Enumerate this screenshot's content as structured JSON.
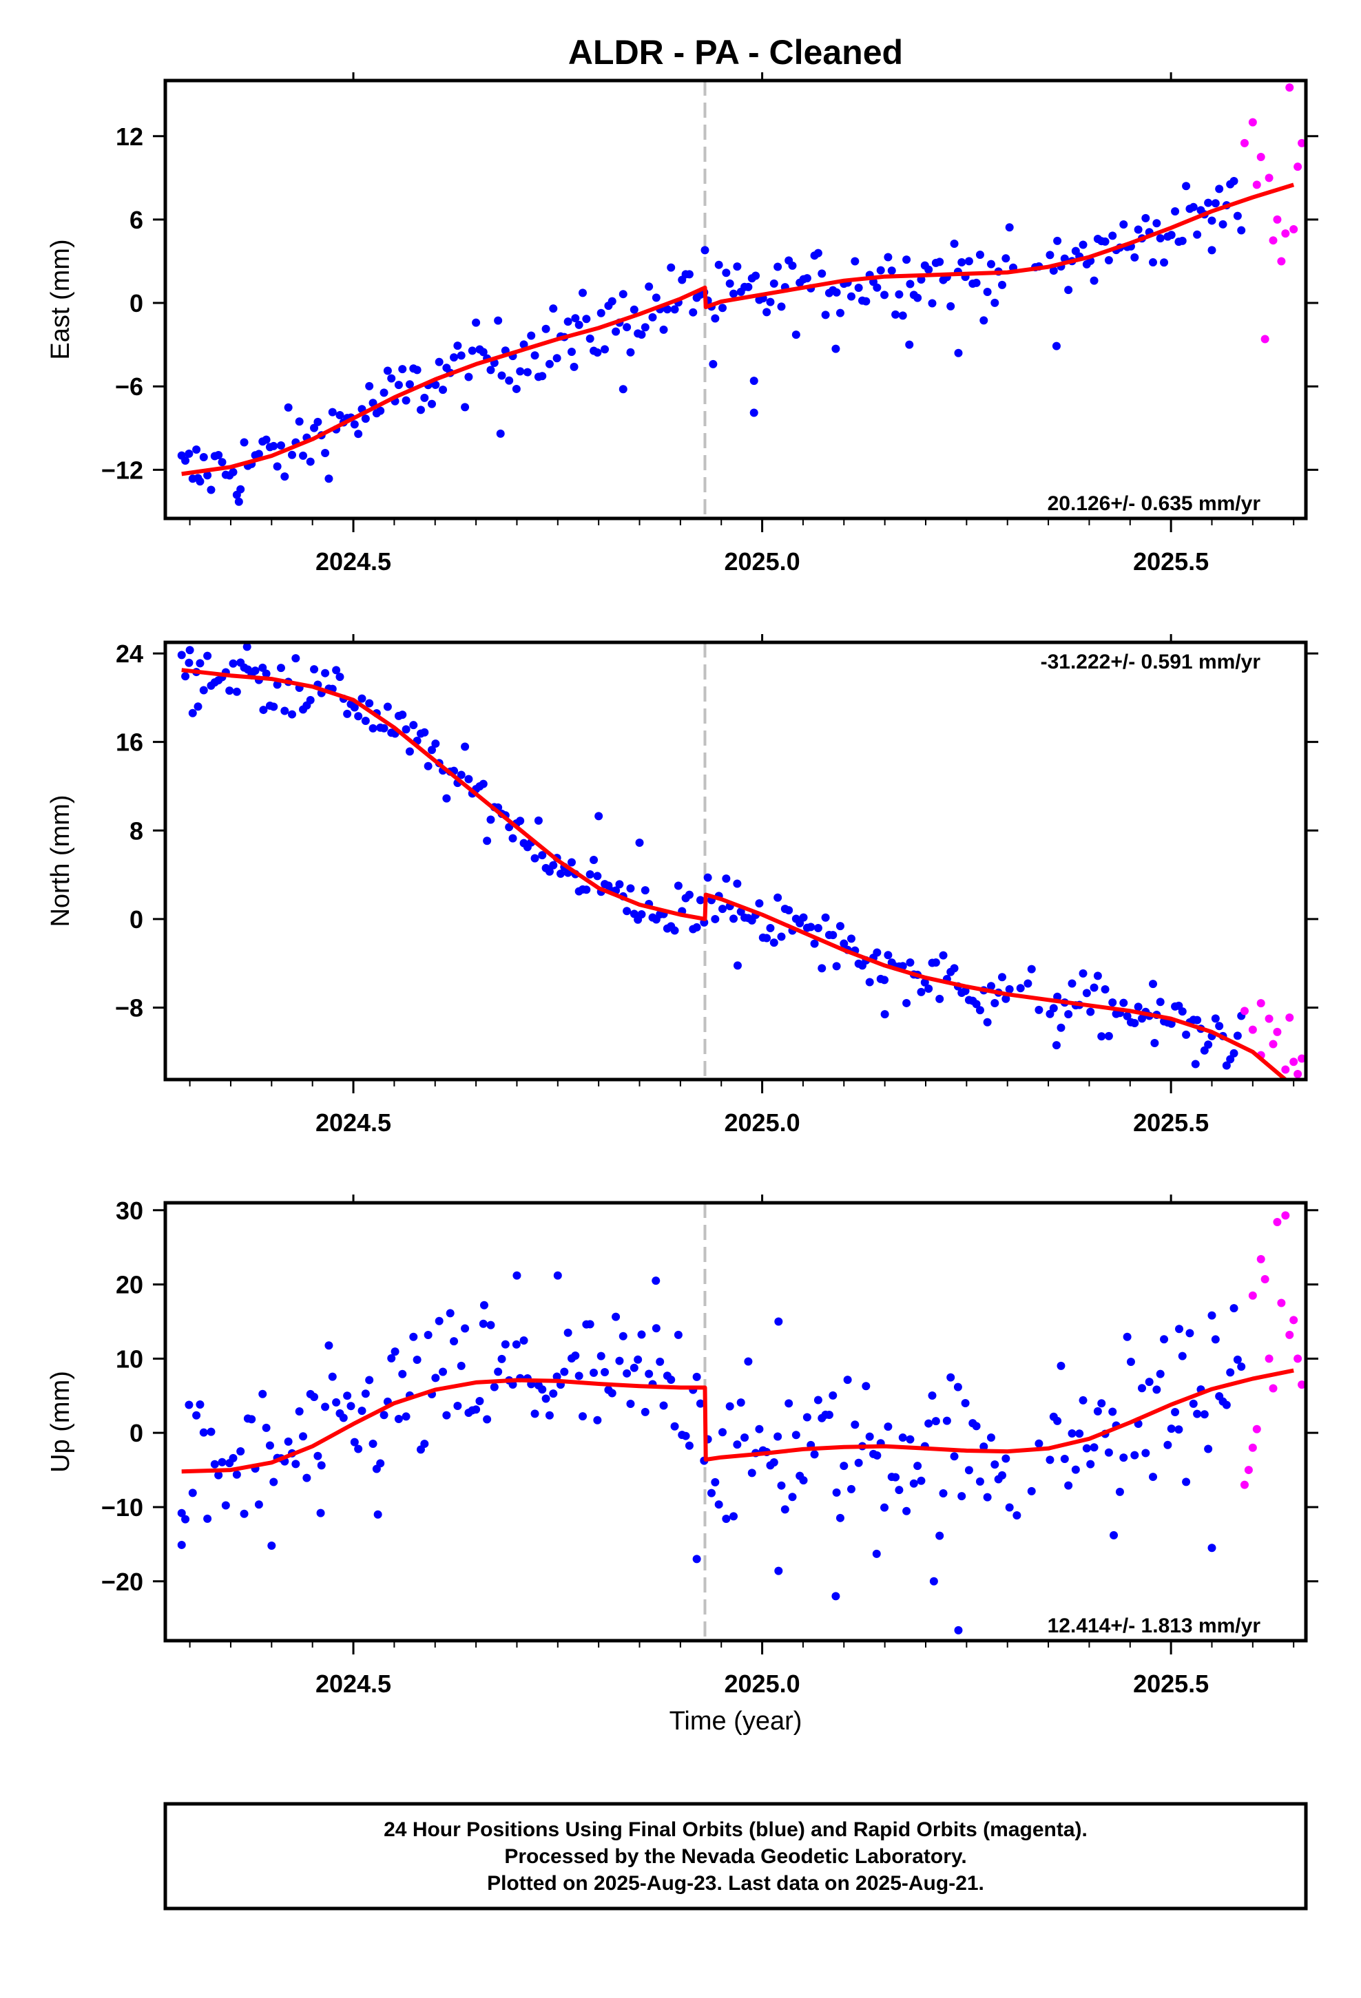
{
  "title": "ALDR  - PA - Cleaned",
  "xlabel": "Time (year)",
  "x_ticks": [
    "2024.5",
    "2025.0",
    "2025.5"
  ],
  "colors": {
    "final": "#0000ff",
    "rapid": "#ff00ff",
    "model": "#ff0000",
    "event": "#c0c0c0"
  },
  "footer": {
    "line1": "24 Hour Positions Using Final Orbits (blue) and Rapid Orbits (magenta).",
    "line2": "Processed by the Nevada Geodetic Laboratory.",
    "line3": "Plotted on 2025-Aug-23. Last data on 2025-Aug-21."
  },
  "chart_data": [
    {
      "type": "scatter",
      "name_shown": "East (mm)",
      "ylabel": "East (mm)",
      "rate_text": "20.126+/- 0.635 mm/yr",
      "xlim": [
        2024.27,
        2025.665
      ],
      "ylim": [
        -15.5,
        16
      ],
      "x_ticks": [
        2024.5,
        2025.0,
        2025.5
      ],
      "y_ticks": [
        12,
        6,
        0,
        -6,
        -12
      ],
      "event_x": 2024.93,
      "rapid_start": 2025.59,
      "model": [
        [
          2024.29,
          -12.3
        ],
        [
          2024.35,
          -11.8
        ],
        [
          2024.4,
          -11.0
        ],
        [
          2024.45,
          -9.8
        ],
        [
          2024.5,
          -8.3
        ],
        [
          2024.55,
          -6.8
        ],
        [
          2024.6,
          -5.5
        ],
        [
          2024.65,
          -4.4
        ],
        [
          2024.7,
          -3.5
        ],
        [
          2024.75,
          -2.6
        ],
        [
          2024.8,
          -1.8
        ],
        [
          2024.85,
          -0.8
        ],
        [
          2024.9,
          0.3
        ],
        [
          2024.93,
          1.1
        ],
        [
          2024.931,
          -0.3
        ],
        [
          2024.95,
          0.1
        ],
        [
          2025.0,
          0.6
        ],
        [
          2025.05,
          1.1
        ],
        [
          2025.1,
          1.6
        ],
        [
          2025.15,
          1.9
        ],
        [
          2025.2,
          2.0
        ],
        [
          2025.25,
          2.1
        ],
        [
          2025.3,
          2.2
        ],
        [
          2025.35,
          2.6
        ],
        [
          2025.4,
          3.3
        ],
        [
          2025.45,
          4.3
        ],
        [
          2025.5,
          5.4
        ],
        [
          2025.55,
          6.6
        ],
        [
          2025.6,
          7.6
        ],
        [
          2025.65,
          8.5
        ]
      ],
      "y_spread": 1.3,
      "outliers": [
        [
          2024.83,
          -6.2
        ],
        [
          2024.77,
          -4.6
        ],
        [
          2024.68,
          -9.4
        ],
        [
          2024.31,
          -12.6
        ],
        [
          2024.36,
          -14.3
        ],
        [
          2024.94,
          -4.4
        ],
        [
          2024.99,
          -5.6
        ],
        [
          2024.99,
          -7.9
        ],
        [
          2025.09,
          -3.3
        ],
        [
          2025.18,
          -3.0
        ],
        [
          2025.24,
          -3.6
        ],
        [
          2025.36,
          -3.1
        ],
        [
          2025.55,
          3.8
        ],
        [
          2024.93,
          3.8
        ]
      ],
      "rapid": [
        [
          2025.59,
          11.5
        ],
        [
          2025.6,
          13.0
        ],
        [
          2025.61,
          10.5
        ],
        [
          2025.62,
          9.0
        ],
        [
          2025.63,
          6.0
        ],
        [
          2025.64,
          5.0
        ],
        [
          2025.615,
          -2.6
        ],
        [
          2025.625,
          4.5
        ],
        [
          2025.635,
          3.0
        ],
        [
          2025.645,
          15.5
        ],
        [
          2025.655,
          9.8
        ],
        [
          2025.66,
          11.5
        ],
        [
          2025.65,
          5.3
        ],
        [
          2025.605,
          8.5
        ]
      ]
    },
    {
      "type": "scatter",
      "ylabel": "North (mm)",
      "rate_text": "-31.222+/- 0.591 mm/yr",
      "xlim": [
        2024.27,
        2025.665
      ],
      "ylim": [
        -14.5,
        25
      ],
      "x_ticks": [
        2024.5,
        2025.0,
        2025.5
      ],
      "y_ticks": [
        24,
        16,
        8,
        0,
        -8
      ],
      "event_x": 2024.93,
      "rapid_start": 2025.59,
      "model": [
        [
          2024.29,
          22.5
        ],
        [
          2024.35,
          22.0
        ],
        [
          2024.4,
          21.7
        ],
        [
          2024.45,
          21.0
        ],
        [
          2024.5,
          19.8
        ],
        [
          2024.55,
          17.3
        ],
        [
          2024.6,
          14.3
        ],
        [
          2024.65,
          11.3
        ],
        [
          2024.7,
          8.3
        ],
        [
          2024.75,
          5.3
        ],
        [
          2024.8,
          2.8
        ],
        [
          2024.85,
          1.3
        ],
        [
          2024.9,
          0.4
        ],
        [
          2024.93,
          0.0
        ],
        [
          2024.931,
          2.2
        ],
        [
          2024.95,
          1.8
        ],
        [
          2025.0,
          0.4
        ],
        [
          2025.05,
          -1.2
        ],
        [
          2025.1,
          -2.8
        ],
        [
          2025.15,
          -4.2
        ],
        [
          2025.2,
          -5.3
        ],
        [
          2025.25,
          -6.1
        ],
        [
          2025.3,
          -6.8
        ],
        [
          2025.35,
          -7.3
        ],
        [
          2025.4,
          -7.8
        ],
        [
          2025.45,
          -8.3
        ],
        [
          2025.5,
          -9.0
        ],
        [
          2025.55,
          -10.2
        ],
        [
          2025.6,
          -12.0
        ],
        [
          2025.64,
          -14.5
        ]
      ],
      "y_spread": 1.3,
      "outliers": [
        [
          2024.31,
          19.2
        ],
        [
          2024.39,
          18.9
        ],
        [
          2024.3,
          24.3
        ],
        [
          2024.37,
          24.6
        ],
        [
          2024.8,
          9.3
        ],
        [
          2024.85,
          6.9
        ],
        [
          2024.97,
          -4.2
        ],
        [
          2025.15,
          -8.6
        ],
        [
          2025.36,
          -11.4
        ],
        [
          2025.48,
          -11.2
        ],
        [
          2025.53,
          -13.1
        ]
      ],
      "rapid": [
        [
          2025.59,
          -8.3
        ],
        [
          2025.6,
          -10.0
        ],
        [
          2025.61,
          -7.6
        ],
        [
          2025.62,
          -9.0
        ],
        [
          2025.625,
          -11.3
        ],
        [
          2025.63,
          -10.2
        ],
        [
          2025.64,
          -13.6
        ],
        [
          2025.645,
          -8.9
        ],
        [
          2025.65,
          -12.9
        ],
        [
          2025.655,
          -14.0
        ],
        [
          2025.66,
          -12.6
        ],
        [
          2025.61,
          -12.3
        ]
      ]
    },
    {
      "type": "scatter",
      "ylabel": "Up (mm)",
      "rate_text": "12.414+/- 1.813 mm/yr",
      "xlim": [
        2024.27,
        2025.665
      ],
      "ylim": [
        -28,
        31
      ],
      "x_ticks": [
        2024.5,
        2025.0,
        2025.5
      ],
      "y_ticks": [
        30,
        20,
        10,
        0,
        -10,
        -20
      ],
      "event_x": 2024.93,
      "rapid_start": 2025.59,
      "model": [
        [
          2024.29,
          -5.2
        ],
        [
          2024.35,
          -5.0
        ],
        [
          2024.4,
          -4.0
        ],
        [
          2024.45,
          -1.8
        ],
        [
          2024.5,
          1.2
        ],
        [
          2024.55,
          4.0
        ],
        [
          2024.6,
          5.8
        ],
        [
          2024.65,
          6.8
        ],
        [
          2024.7,
          7.1
        ],
        [
          2024.75,
          7.0
        ],
        [
          2024.8,
          6.6
        ],
        [
          2024.85,
          6.3
        ],
        [
          2024.9,
          6.1
        ],
        [
          2024.93,
          6.1
        ],
        [
          2024.931,
          -3.6
        ],
        [
          2024.95,
          -3.3
        ],
        [
          2025.0,
          -2.8
        ],
        [
          2025.05,
          -2.2
        ],
        [
          2025.1,
          -1.9
        ],
        [
          2025.15,
          -1.8
        ],
        [
          2025.2,
          -2.1
        ],
        [
          2025.25,
          -2.4
        ],
        [
          2025.3,
          -2.5
        ],
        [
          2025.35,
          -2.1
        ],
        [
          2025.4,
          -0.8
        ],
        [
          2025.45,
          1.4
        ],
        [
          2025.5,
          3.8
        ],
        [
          2025.55,
          5.9
        ],
        [
          2025.6,
          7.3
        ],
        [
          2025.65,
          8.4
        ]
      ],
      "y_spread": 5.0,
      "outliers": [
        [
          2024.29,
          -15.1
        ],
        [
          2024.4,
          -15.2
        ],
        [
          2024.46,
          -10.8
        ],
        [
          2024.53,
          -11.0
        ],
        [
          2024.92,
          -17.0
        ],
        [
          2025.02,
          -18.6
        ],
        [
          2025.09,
          -22.0
        ],
        [
          2025.14,
          -16.3
        ],
        [
          2025.21,
          -20.0
        ],
        [
          2025.24,
          -26.6
        ],
        [
          2025.43,
          -13.8
        ],
        [
          2025.55,
          -15.5
        ],
        [
          2024.7,
          21.2
        ],
        [
          2024.75,
          21.2
        ],
        [
          2024.87,
          20.5
        ],
        [
          2025.02,
          15.0
        ],
        [
          2025.51,
          14.0
        ],
        [
          2024.66,
          17.2
        ]
      ],
      "rapid": [
        [
          2025.59,
          -7.0
        ],
        [
          2025.595,
          -5.0
        ],
        [
          2025.6,
          -2.0
        ],
        [
          2025.61,
          23.4
        ],
        [
          2025.615,
          20.7
        ],
        [
          2025.62,
          10.0
        ],
        [
          2025.625,
          6.0
        ],
        [
          2025.63,
          28.4
        ],
        [
          2025.64,
          29.3
        ],
        [
          2025.645,
          13.2
        ],
        [
          2025.65,
          15.2
        ],
        [
          2025.655,
          10.0
        ],
        [
          2025.66,
          6.5
        ],
        [
          2025.605,
          0.5
        ],
        [
          2025.635,
          17.5
        ],
        [
          2025.6,
          18.5
        ]
      ]
    }
  ]
}
